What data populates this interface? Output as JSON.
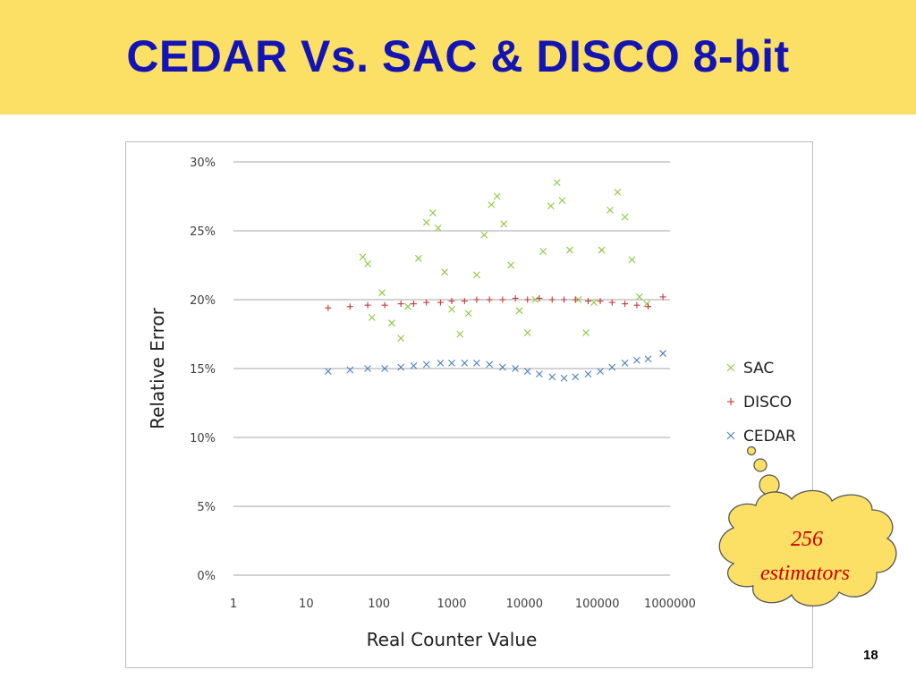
{
  "slide": {
    "title": "CEDAR Vs. SAC & DISCO 8-bit",
    "page_number": "18",
    "callout": {
      "line1": "256",
      "line2": "estimators"
    }
  },
  "colors": {
    "title_band": "#fce066",
    "title_text": "#1414b4",
    "SAC": "#8cc63f",
    "DISCO": "#c0393b",
    "CEDAR": "#4a7ebb",
    "callout_fill": "#fce066",
    "callout_text": "#cc0000"
  },
  "chart_data": {
    "type": "scatter",
    "title": "",
    "xlabel": "Real Counter Value",
    "ylabel": "Relative Error",
    "x_scale": "log",
    "x_ticks": [
      "1",
      "10",
      "100",
      "1000",
      "10000",
      "100000",
      "1000000"
    ],
    "y_ticks": [
      "0%",
      "5%",
      "10%",
      "15%",
      "20%",
      "25%",
      "30%"
    ],
    "xlim": [
      1,
      1000000
    ],
    "ylim": [
      0,
      30
    ],
    "grid": "horizontal",
    "legend_position": "right",
    "series": [
      {
        "name": "SAC",
        "marker": "x",
        "points": [
          [
            60,
            23.1
          ],
          [
            70,
            22.6
          ],
          [
            80,
            18.7
          ],
          [
            110,
            20.5
          ],
          [
            150,
            18.3
          ],
          [
            200,
            17.2
          ],
          [
            250,
            19.5
          ],
          [
            350,
            23.0
          ],
          [
            450,
            25.6
          ],
          [
            550,
            26.3
          ],
          [
            650,
            25.2
          ],
          [
            800,
            22.0
          ],
          [
            1000,
            19.3
          ],
          [
            1300,
            17.5
          ],
          [
            1700,
            19.0
          ],
          [
            2200,
            21.8
          ],
          [
            2800,
            24.7
          ],
          [
            3500,
            26.9
          ],
          [
            4200,
            27.5
          ],
          [
            5200,
            25.5
          ],
          [
            6500,
            22.5
          ],
          [
            8500,
            19.2
          ],
          [
            11000,
            17.6
          ],
          [
            14000,
            20.0
          ],
          [
            18000,
            23.5
          ],
          [
            23000,
            26.8
          ],
          [
            28000,
            28.5
          ],
          [
            33000,
            27.2
          ],
          [
            42000,
            23.6
          ],
          [
            55000,
            20.0
          ],
          [
            70000,
            17.6
          ],
          [
            90000,
            19.8
          ],
          [
            115000,
            23.6
          ],
          [
            150000,
            26.5
          ],
          [
            190000,
            27.8
          ],
          [
            240000,
            26.0
          ],
          [
            300000,
            22.9
          ],
          [
            380000,
            20.2
          ],
          [
            480000,
            19.7
          ]
        ]
      },
      {
        "name": "DISCO",
        "marker": "+",
        "points": [
          [
            20,
            19.4
          ],
          [
            40,
            19.5
          ],
          [
            70,
            19.6
          ],
          [
            120,
            19.6
          ],
          [
            200,
            19.7
          ],
          [
            300,
            19.7
          ],
          [
            450,
            19.8
          ],
          [
            700,
            19.8
          ],
          [
            1000,
            19.9
          ],
          [
            1500,
            19.9
          ],
          [
            2200,
            20.0
          ],
          [
            3300,
            20.0
          ],
          [
            5000,
            20.0
          ],
          [
            7500,
            20.1
          ],
          [
            11000,
            20.0
          ],
          [
            16000,
            20.1
          ],
          [
            24000,
            20.0
          ],
          [
            35000,
            20.0
          ],
          [
            50000,
            20.0
          ],
          [
            75000,
            19.9
          ],
          [
            110000,
            19.9
          ],
          [
            160000,
            19.8
          ],
          [
            240000,
            19.7
          ],
          [
            350000,
            19.6
          ],
          [
            500000,
            19.5
          ],
          [
            800000,
            20.2
          ]
        ]
      },
      {
        "name": "CEDAR",
        "marker": "x",
        "points": [
          [
            20,
            14.8
          ],
          [
            40,
            14.9
          ],
          [
            70,
            15.0
          ],
          [
            120,
            15.0
          ],
          [
            200,
            15.1
          ],
          [
            300,
            15.2
          ],
          [
            450,
            15.3
          ],
          [
            700,
            15.4
          ],
          [
            1000,
            15.4
          ],
          [
            1500,
            15.4
          ],
          [
            2200,
            15.4
          ],
          [
            3300,
            15.3
          ],
          [
            5000,
            15.1
          ],
          [
            7500,
            15.0
          ],
          [
            11000,
            14.8
          ],
          [
            16000,
            14.6
          ],
          [
            24000,
            14.4
          ],
          [
            35000,
            14.3
          ],
          [
            50000,
            14.4
          ],
          [
            75000,
            14.6
          ],
          [
            110000,
            14.8
          ],
          [
            160000,
            15.1
          ],
          [
            240000,
            15.4
          ],
          [
            350000,
            15.6
          ],
          [
            500000,
            15.7
          ],
          [
            800000,
            16.1
          ]
        ]
      }
    ]
  }
}
